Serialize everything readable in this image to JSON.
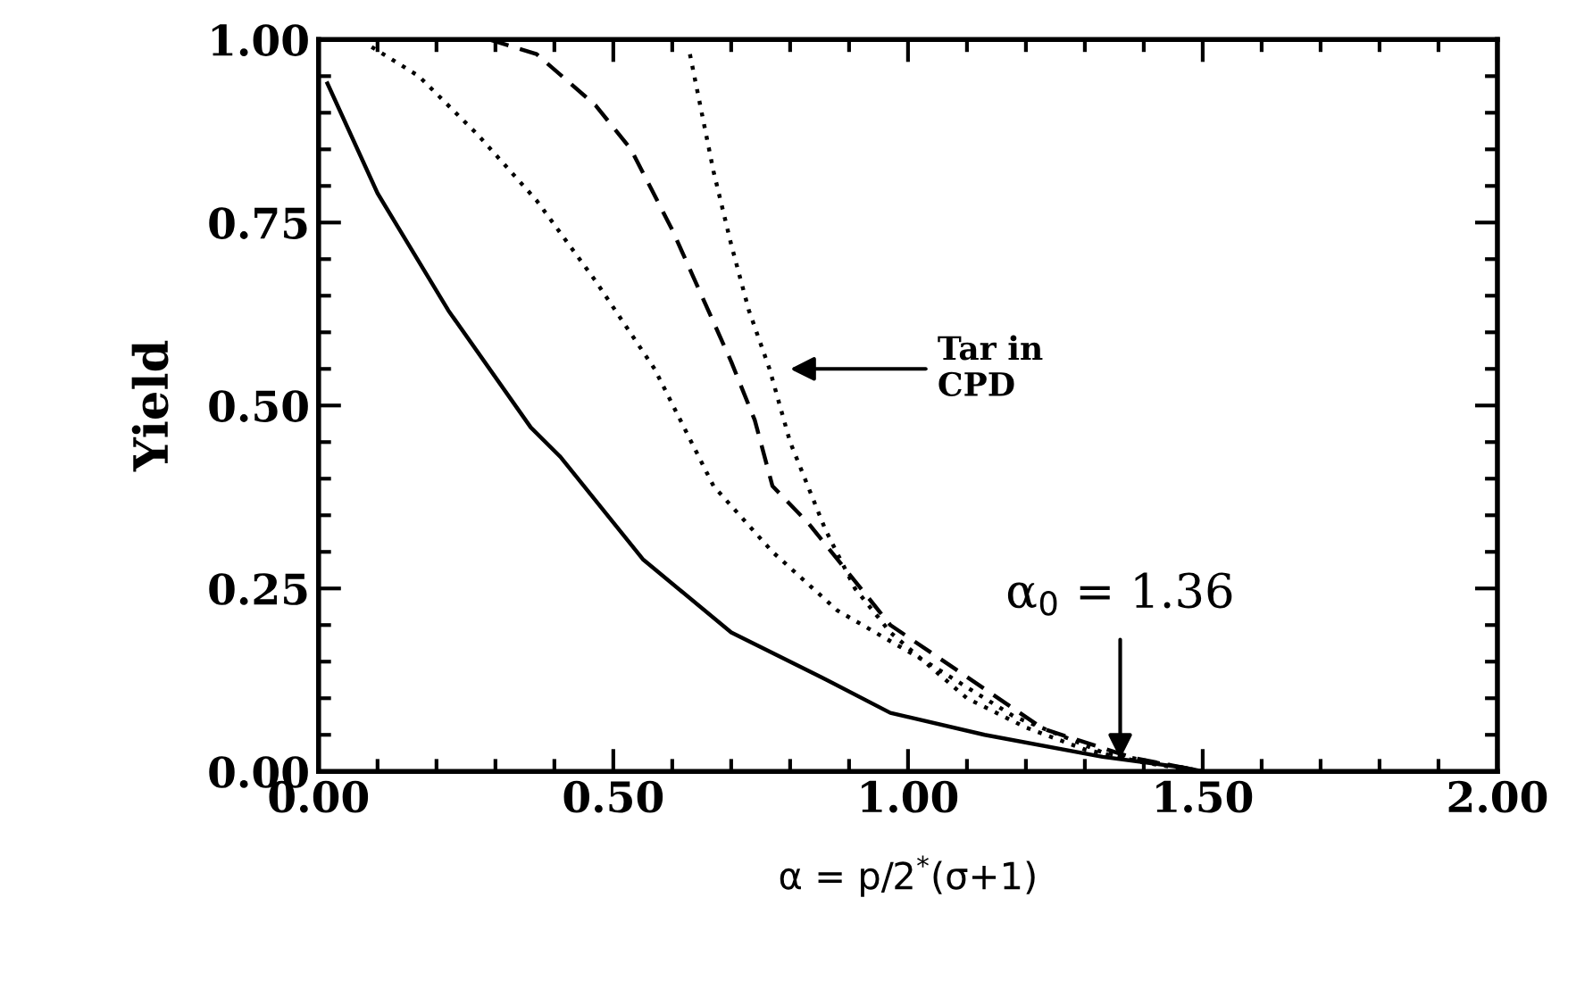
{
  "chart_data": {
    "type": "line",
    "xlabel": "α = p/2$^{*}$(σ+1)",
    "ylabel": "Yield",
    "xlim": [
      0,
      2
    ],
    "ylim": [
      0,
      1
    ],
    "xticks": [
      {
        "value": 0,
        "label": "0.00"
      },
      {
        "value": 0.5,
        "label": "0.50"
      },
      {
        "value": 1,
        "label": "1.00"
      },
      {
        "value": 1.5,
        "label": "1.50"
      },
      {
        "value": 2,
        "label": "2.00"
      }
    ],
    "yticks": [
      {
        "value": 0,
        "label": "0.00"
      },
      {
        "value": 0.25,
        "label": "0.25"
      },
      {
        "value": 0.5,
        "label": "0.50"
      },
      {
        "value": 0.75,
        "label": "0.75"
      },
      {
        "value": 1,
        "label": "1.00"
      }
    ],
    "grid": false,
    "legend": false,
    "marker": "none",
    "series": [
      {
        "color": "#000000",
        "line_style": "solid",
        "x": [
          0.015,
          0.1,
          0.22,
          0.36,
          0.41,
          0.55,
          0.7,
          0.85,
          0.97,
          1.13,
          1.33,
          1.47,
          1.5
        ],
        "values": [
          0.94,
          0.79,
          0.63,
          0.47,
          0.43,
          0.29,
          0.19,
          0.13,
          0.08,
          0.05,
          0.02,
          0.005,
          0
        ]
      },
      {
        "color": "#000000",
        "line_style": "dotted",
        "x": [
          0.09,
          0.17,
          0.27,
          0.37,
          0.47,
          0.57,
          0.62,
          0.67,
          0.77,
          0.88,
          1.03,
          1.18,
          1.33,
          1.5
        ],
        "values": [
          0.99,
          0.95,
          0.87,
          0.78,
          0.67,
          0.55,
          0.47,
          0.39,
          0.3,
          0.22,
          0.15,
          0.075,
          0.026,
          0
        ]
      },
      {
        "color": "#000000",
        "line_style": "dashed",
        "x": [
          0.29,
          0.37,
          0.47,
          0.53,
          0.6,
          0.65,
          0.7,
          0.74,
          0.77,
          0.83,
          0.88,
          0.97,
          1.08,
          1.23,
          1.38,
          1.5
        ],
        "values": [
          1.0,
          0.98,
          0.91,
          0.85,
          0.74,
          0.65,
          0.56,
          0.48,
          0.39,
          0.34,
          0.29,
          0.2,
          0.14,
          0.058,
          0.019,
          0
        ]
      },
      {
        "color": "#000000",
        "line_style": "dotted",
        "x": [
          0.63,
          0.67,
          0.7,
          0.73,
          0.765,
          0.8,
          0.86,
          0.91,
          0.97,
          1.1,
          1.2,
          1.3,
          1.4,
          1.5
        ],
        "values": [
          0.98,
          0.82,
          0.72,
          0.63,
          0.55,
          0.45,
          0.33,
          0.25,
          0.19,
          0.1,
          0.06,
          0.03,
          0.012,
          0
        ]
      }
    ],
    "annotations": [
      "Tar in\nCPD",
      {
        "text": "α$_{0}$ = 1.36",
        "x": 1.36,
        "y": 0.017
      }
    ]
  }
}
